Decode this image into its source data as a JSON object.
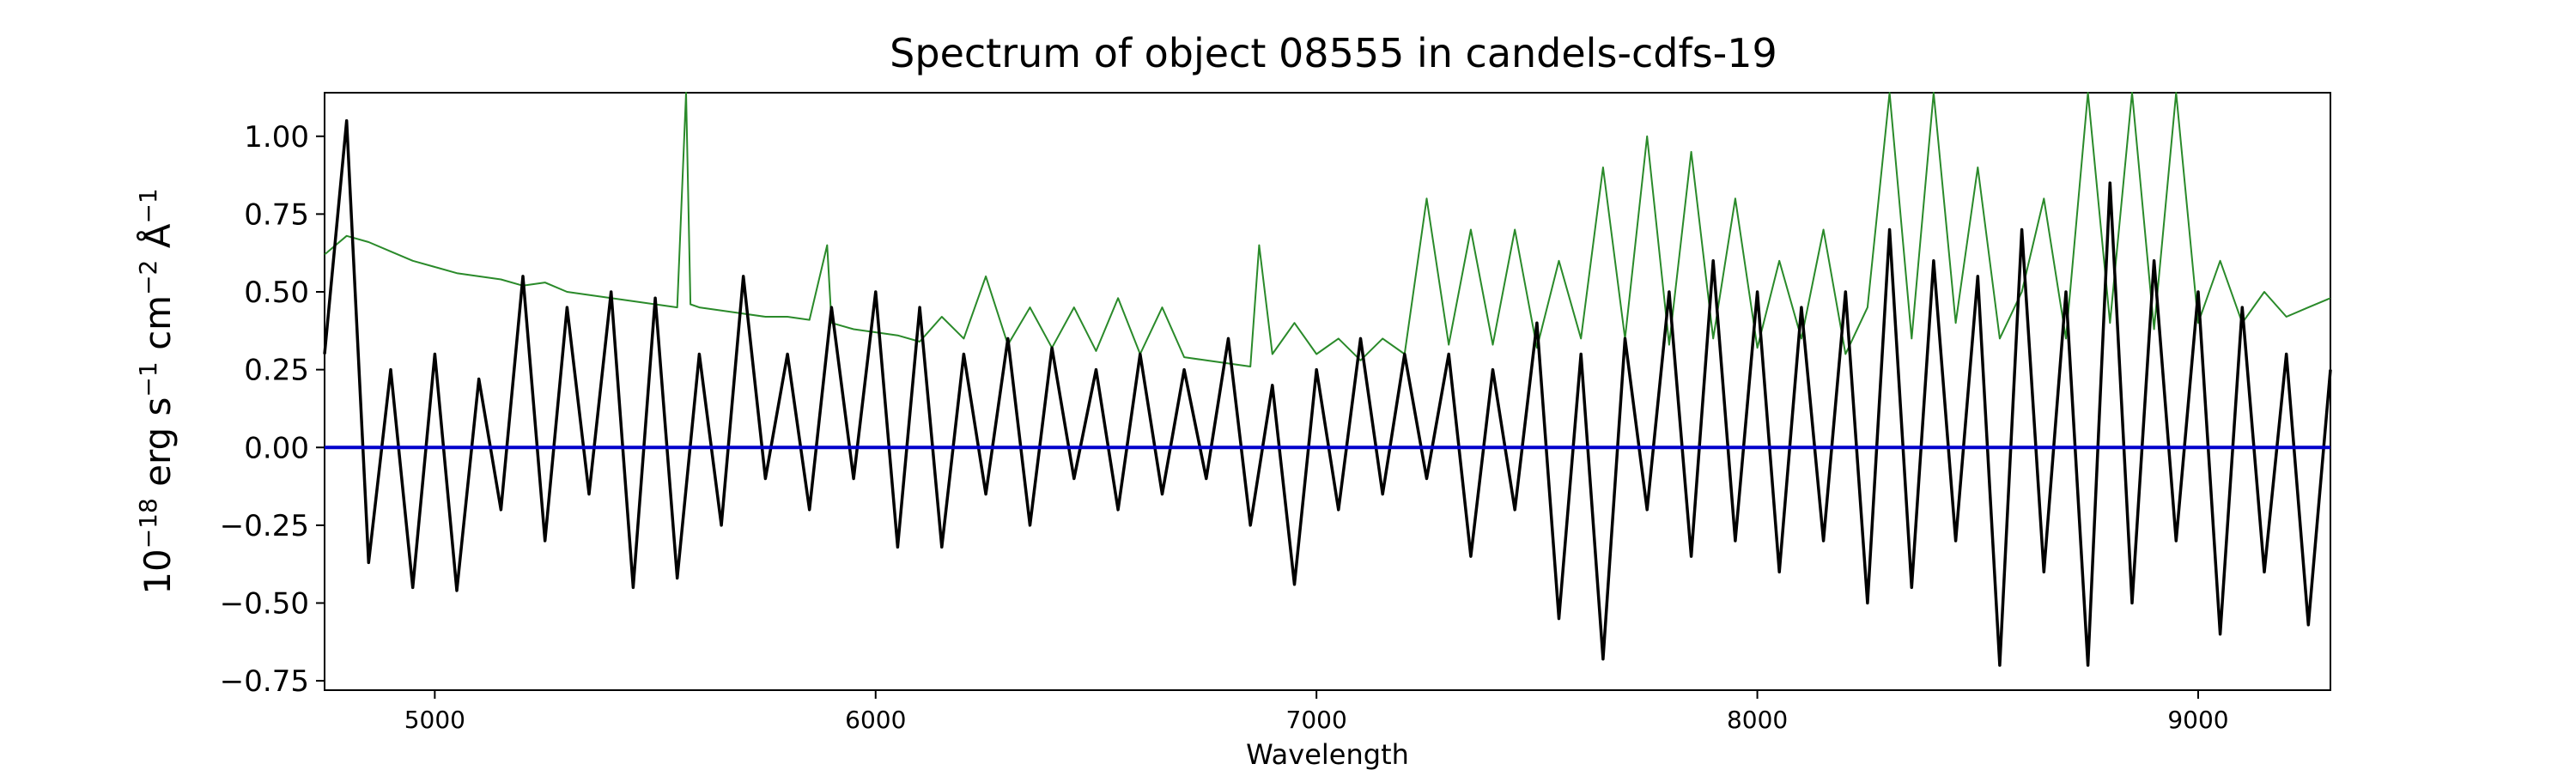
{
  "chart_data": {
    "type": "line",
    "title": "Spectrum of object 08555 in candels-cdfs-19",
    "xlabel": "Wavelength",
    "ylabel_base": "10",
    "ylabel_exp": "−18",
    "ylabel_rest": [
      " erg s",
      "−1",
      " cm",
      "−2",
      " Å",
      "−1"
    ],
    "xlim": [
      4750,
      9300
    ],
    "ylim": [
      -0.78,
      1.14
    ],
    "xticks": [
      5000,
      6000,
      7000,
      8000,
      9000
    ],
    "xtick_labels": [
      "5000",
      "6000",
      "7000",
      "8000",
      "9000"
    ],
    "yticks": [
      -0.75,
      -0.5,
      -0.25,
      0.0,
      0.25,
      0.5,
      0.75,
      1.0
    ],
    "ytick_labels": [
      "−0.75",
      "−0.50",
      "−0.25",
      "0.00",
      "0.25",
      "0.50",
      "0.75",
      "1.00"
    ],
    "grid": false,
    "colors": {
      "flux": "#000000",
      "error": "#2a8a2a",
      "zero": "#0000cc"
    },
    "series": [
      {
        "key": "flux",
        "x": [
          4750,
          4800,
          4850,
          4900,
          4950,
          5000,
          5050,
          5100,
          5150,
          5200,
          5250,
          5300,
          5350,
          5400,
          5450,
          5500,
          5550,
          5600,
          5650,
          5700,
          5750,
          5800,
          5850,
          5900,
          5950,
          6000,
          6050,
          6100,
          6150,
          6200,
          6250,
          6300,
          6350,
          6400,
          6450,
          6500,
          6550,
          6600,
          6650,
          6700,
          6750,
          6800,
          6850,
          6900,
          6950,
          7000,
          7050,
          7100,
          7150,
          7200,
          7250,
          7300,
          7350,
          7400,
          7450,
          7500,
          7550,
          7600,
          7650,
          7700,
          7750,
          7800,
          7850,
          7900,
          7950,
          8000,
          8050,
          8100,
          8150,
          8200,
          8250,
          8300,
          8350,
          8400,
          8450,
          8500,
          8550,
          8600,
          8650,
          8700,
          8750,
          8800,
          8850,
          8900,
          8950,
          9000,
          9050,
          9100,
          9150,
          9200,
          9250,
          9300
        ],
        "y": [
          0.3,
          1.05,
          -0.37,
          0.25,
          -0.45,
          0.3,
          -0.46,
          0.22,
          -0.2,
          0.55,
          -0.3,
          0.45,
          -0.15,
          0.5,
          -0.45,
          0.48,
          -0.42,
          0.3,
          -0.25,
          0.55,
          -0.1,
          0.3,
          -0.2,
          0.45,
          -0.1,
          0.5,
          -0.32,
          0.45,
          -0.32,
          0.3,
          -0.15,
          0.35,
          -0.25,
          0.32,
          -0.1,
          0.25,
          -0.2,
          0.3,
          -0.15,
          0.25,
          -0.1,
          0.35,
          -0.25,
          0.2,
          -0.44,
          0.25,
          -0.2,
          0.35,
          -0.15,
          0.3,
          -0.1,
          0.3,
          -0.35,
          0.25,
          -0.2,
          0.4,
          -0.55,
          0.3,
          -0.68,
          0.35,
          -0.2,
          0.5,
          -0.35,
          0.6,
          -0.3,
          0.5,
          -0.4,
          0.45,
          -0.3,
          0.5,
          -0.5,
          0.7,
          -0.45,
          0.6,
          -0.3,
          0.55,
          -0.7,
          0.7,
          -0.4,
          0.5,
          -0.7,
          0.85,
          -0.5,
          0.6,
          -0.3,
          0.5,
          -0.6,
          0.45,
          -0.4,
          0.3,
          -0.57,
          0.25
        ]
      },
      {
        "key": "error",
        "x": [
          4750,
          4800,
          4850,
          4900,
          4950,
          5000,
          5050,
          5100,
          5150,
          5200,
          5250,
          5300,
          5350,
          5400,
          5450,
          5500,
          5550,
          5570,
          5580,
          5600,
          5650,
          5700,
          5750,
          5800,
          5850,
          5890,
          5900,
          5950,
          6000,
          6050,
          6100,
          6150,
          6200,
          6250,
          6300,
          6350,
          6400,
          6450,
          6500,
          6550,
          6600,
          6650,
          6700,
          6750,
          6800,
          6850,
          6870,
          6900,
          6950,
          7000,
          7050,
          7100,
          7150,
          7200,
          7250,
          7300,
          7350,
          7400,
          7450,
          7500,
          7550,
          7600,
          7650,
          7700,
          7750,
          7800,
          7850,
          7900,
          7950,
          8000,
          8050,
          8100,
          8150,
          8200,
          8250,
          8300,
          8350,
          8400,
          8450,
          8500,
          8550,
          8600,
          8650,
          8700,
          8750,
          8800,
          8850,
          8900,
          8950,
          9000,
          9050,
          9100,
          9150,
          9200,
          9250,
          9300
        ],
        "y": [
          0.62,
          0.68,
          0.66,
          0.63,
          0.6,
          0.58,
          0.56,
          0.55,
          0.54,
          0.52,
          0.53,
          0.5,
          0.49,
          0.48,
          0.47,
          0.46,
          0.45,
          1.14,
          0.46,
          0.45,
          0.44,
          0.43,
          0.42,
          0.42,
          0.41,
          0.65,
          0.4,
          0.38,
          0.37,
          0.36,
          0.34,
          0.42,
          0.35,
          0.55,
          0.33,
          0.45,
          0.32,
          0.45,
          0.31,
          0.48,
          0.3,
          0.45,
          0.29,
          0.28,
          0.27,
          0.26,
          0.65,
          0.3,
          0.4,
          0.3,
          0.35,
          0.28,
          0.35,
          0.3,
          0.8,
          0.33,
          0.7,
          0.33,
          0.7,
          0.32,
          0.6,
          0.35,
          0.9,
          0.35,
          1.0,
          0.33,
          0.95,
          0.35,
          0.8,
          0.32,
          0.6,
          0.35,
          0.7,
          0.3,
          0.45,
          1.14,
          0.35,
          1.14,
          0.4,
          0.9,
          0.35,
          0.5,
          0.8,
          0.35,
          1.14,
          0.4,
          1.14,
          0.38,
          1.14,
          0.4,
          0.6,
          0.4,
          0.5,
          0.42,
          0.45,
          0.48
        ]
      },
      {
        "key": "zero",
        "x": [
          4750,
          9300
        ],
        "y": [
          0.0,
          0.0
        ]
      }
    ]
  }
}
